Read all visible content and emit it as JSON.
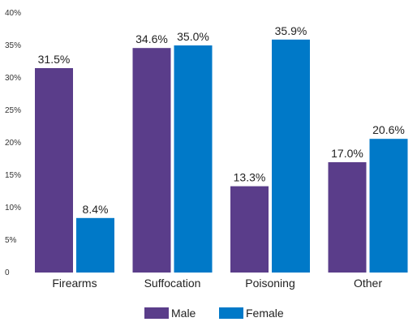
{
  "chart_data": {
    "type": "bar",
    "categories": [
      "Firearms",
      "Suffocation",
      "Poisoning",
      "Other"
    ],
    "series": [
      {
        "name": "Male",
        "values": [
          31.5,
          34.6,
          13.3,
          17.0
        ],
        "color": "#5a3d8a",
        "labels": [
          "31.5%",
          "34.6%",
          "13.3%",
          "17.0%"
        ]
      },
      {
        "name": "Female",
        "values": [
          8.4,
          35.0,
          35.9,
          20.6
        ],
        "color": "#0079c8",
        "labels": [
          "8.4%",
          "35.0%",
          "35.9%",
          "20.6%"
        ]
      }
    ],
    "ylim": [
      0,
      40
    ],
    "yticks": [
      0,
      5,
      10,
      15,
      20,
      25,
      30,
      35,
      40
    ],
    "ytick_labels": [
      "0",
      "5%",
      "10%",
      "15%",
      "20%",
      "25%",
      "30%",
      "35%",
      "40%"
    ],
    "title": "",
    "xlabel": "",
    "ylabel": "",
    "grid": false,
    "legend_position": "bottom-center"
  }
}
